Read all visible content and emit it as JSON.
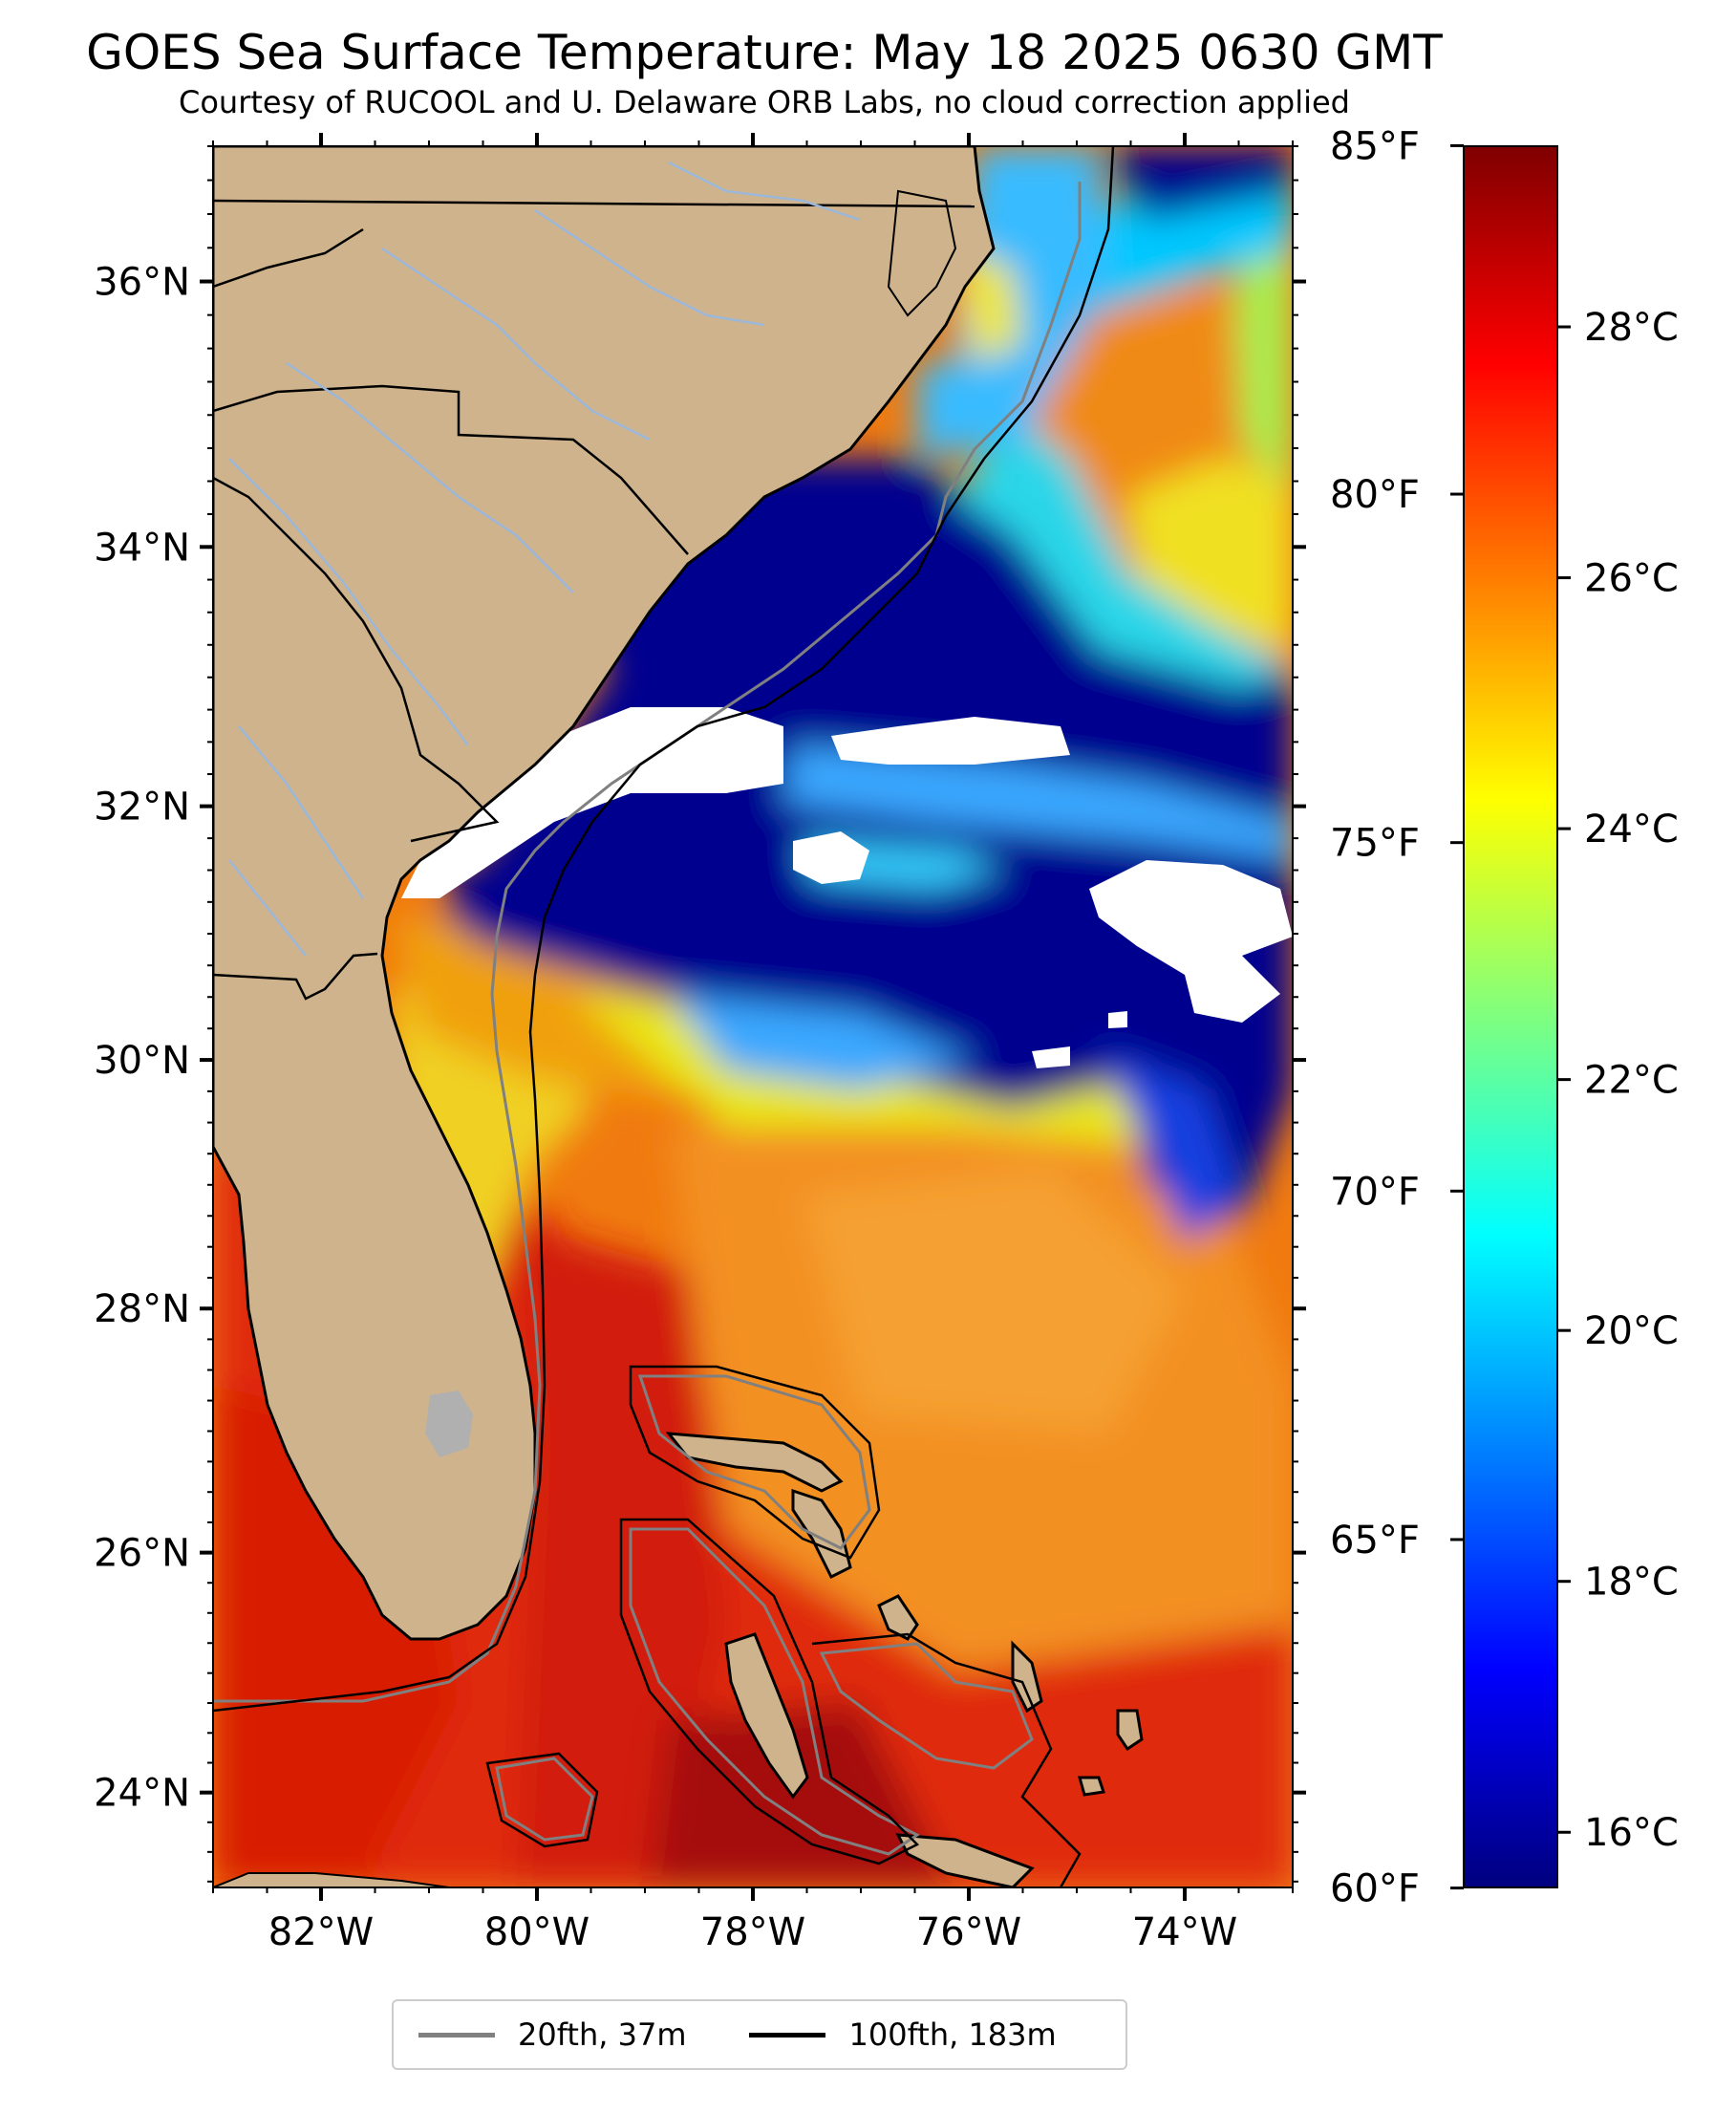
{
  "title": "GOES Sea Surface Temperature: May 18 2025 0630 GMT",
  "subtitle": "Courtesy of RUCOOL and U. Delaware ORB Labs, no cloud correction applied",
  "map": {
    "extent": {
      "lon_min": -83,
      "lon_max": -73,
      "lat_min": 23.2,
      "lat_max": 37.0
    },
    "lat_ticks": [
      {
        "value": 36,
        "label": "36°N"
      },
      {
        "value": 34,
        "label": "34°N"
      },
      {
        "value": 32,
        "label": "32°N"
      },
      {
        "value": 30,
        "label": "30°N"
      },
      {
        "value": 28,
        "label": "28°N"
      },
      {
        "value": 26,
        "label": "26°N"
      },
      {
        "value": 24,
        "label": "24°N"
      }
    ],
    "lon_ticks": [
      {
        "value": -82,
        "label": "82°W"
      },
      {
        "value": -80,
        "label": "80°W"
      },
      {
        "value": -78,
        "label": "78°W"
      },
      {
        "value": -76,
        "label": "76°W"
      },
      {
        "value": -74,
        "label": "74°W"
      }
    ],
    "colors": {
      "land": "#cfb38c",
      "cloud_mask": "#ffffff",
      "ocean_warm": "#f07a10",
      "ocean_hot": "#c81008",
      "ocean_cold": "#00058f",
      "ocean_mid": "#e8f020",
      "lake": "#b0b0b0",
      "river": "#9bb7da",
      "border": "#000000"
    }
  },
  "colorbar": {
    "celsius_min": 15.56,
    "celsius_max": 29.44,
    "celsius_ticks": [
      {
        "value": 16,
        "label": "16°C"
      },
      {
        "value": 18,
        "label": "18°C"
      },
      {
        "value": 20,
        "label": "20°C"
      },
      {
        "value": 22,
        "label": "22°C"
      },
      {
        "value": 24,
        "label": "24°C"
      },
      {
        "value": 26,
        "label": "26°C"
      },
      {
        "value": 28,
        "label": "28°C"
      }
    ],
    "fahrenheit_ticks": [
      {
        "value": 60,
        "label": "60°F"
      },
      {
        "value": 65,
        "label": "65°F"
      },
      {
        "value": 70,
        "label": "70°F"
      },
      {
        "value": 75,
        "label": "75°F"
      },
      {
        "value": 80,
        "label": "80°F"
      },
      {
        "value": 85,
        "label": "85°F"
      }
    ],
    "colormap": [
      "#00007f",
      "#0000ff",
      "#007fff",
      "#00ffff",
      "#7fff7f",
      "#ffff00",
      "#ff7f00",
      "#ff0000",
      "#7f0000"
    ]
  },
  "legend": {
    "items": [
      {
        "label": "20fth, 37m",
        "color": "#808080"
      },
      {
        "label": "100fth, 183m",
        "color": "#000000"
      }
    ]
  }
}
